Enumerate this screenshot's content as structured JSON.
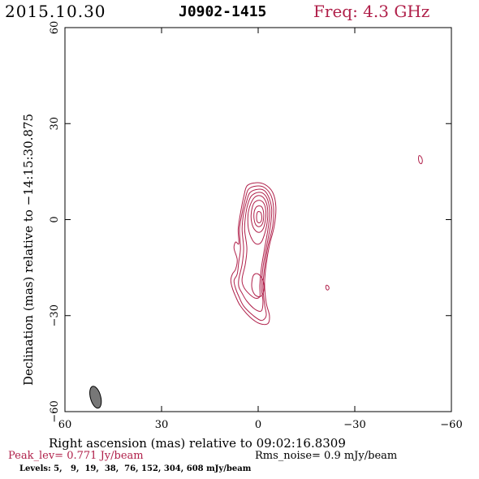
{
  "header": {
    "date": "2015.10.30",
    "source": "J0902-1415",
    "freq": "Freq: 4.3 GHz"
  },
  "footer": {
    "peak_label": "Peak_lev=",
    "peak_value": "0.771 Jy/beam",
    "rms_label": "Rms_noise=",
    "rms_value": "0.9 mJy/beam",
    "levels_label": "Levels:",
    "levels_values": "5,   9,  19,  38,  76, 152, 304, 608 mJy/beam"
  },
  "colors": {
    "contour": "#b0204a",
    "freq": "#b0204a",
    "peak": "#b0204a",
    "beam_fill": "#777777",
    "axis": "#000000"
  },
  "chart_data": {
    "type": "contour",
    "xlabel": "Right ascension (mas) relative to 09:02:16.8309",
    "ylabel": "Declination (mas) relative to −14:15:30.875",
    "xlim": [
      60,
      -60
    ],
    "ylim": [
      -60,
      60
    ],
    "x_ticks": [
      60,
      30,
      0,
      -30,
      -60
    ],
    "y_ticks": [
      -60,
      -30,
      0,
      30,
      60
    ],
    "x_tick_labels": [
      "60",
      "30",
      "0",
      "−30",
      "−60"
    ],
    "y_tick_labels": [
      "−60",
      "−30",
      "0",
      "30",
      "60"
    ],
    "levels_mJy": [
      5,
      9,
      19,
      38,
      76,
      152,
      304,
      608
    ],
    "core": {
      "ra": -0.5,
      "dec": 0.5
    },
    "beam": {
      "ra": 50.5,
      "dec": -55.5,
      "major_mas": 7.0,
      "minor_mas": 3.2,
      "pa_deg": -15
    },
    "contours": [
      {
        "name": "core-contour-5",
        "points": [
          [
            3.5,
            10.5
          ],
          [
            1.0,
            11.5
          ],
          [
            -2.0,
            11.0
          ],
          [
            -4.5,
            8.5
          ],
          [
            -5.5,
            4.0
          ],
          [
            -5.0,
            -2.0
          ],
          [
            -3.5,
            -8.0
          ],
          [
            -2.5,
            -14.0
          ],
          [
            -2.0,
            -20.0
          ],
          [
            -2.5,
            -26.0
          ],
          [
            -3.5,
            -30.0
          ],
          [
            -3.0,
            -32.5
          ],
          [
            -0.5,
            -32.5
          ],
          [
            2.5,
            -30.5
          ],
          [
            5.5,
            -27.0
          ],
          [
            7.0,
            -24.0
          ],
          [
            8.0,
            -21.5
          ],
          [
            8.5,
            -19.0
          ],
          [
            8.0,
            -17.0
          ],
          [
            7.0,
            -15.5
          ],
          [
            6.5,
            -12.5
          ],
          [
            7.5,
            -9.0
          ],
          [
            7.0,
            -7.0
          ],
          [
            6.0,
            -7.5
          ],
          [
            6.2,
            -3.0
          ],
          [
            5.5,
            2.0
          ],
          [
            4.5,
            7.0
          ],
          [
            3.5,
            10.5
          ]
        ]
      },
      {
        "name": "core-contour-9",
        "points": [
          [
            3.0,
            9.5
          ],
          [
            0.5,
            10.5
          ],
          [
            -2.0,
            10.0
          ],
          [
            -4.0,
            7.5
          ],
          [
            -4.8,
            3.5
          ],
          [
            -4.5,
            -2.0
          ],
          [
            -3.0,
            -8.5
          ],
          [
            -2.0,
            -15.0
          ],
          [
            -1.5,
            -21.0
          ],
          [
            -2.0,
            -26.5
          ],
          [
            -2.5,
            -30.0
          ],
          [
            -1.0,
            -31.5
          ],
          [
            1.5,
            -30.0
          ],
          [
            4.5,
            -27.0
          ],
          [
            6.0,
            -24.0
          ],
          [
            7.0,
            -21.5
          ],
          [
            7.5,
            -19.0
          ],
          [
            6.5,
            -17.0
          ],
          [
            6.0,
            -13.0
          ],
          [
            5.5,
            -9.0
          ],
          [
            5.8,
            -3.0
          ],
          [
            5.0,
            2.0
          ],
          [
            4.0,
            6.5
          ],
          [
            3.0,
            9.5
          ]
        ]
      },
      {
        "name": "core-contour-19",
        "points": [
          [
            2.5,
            8.5
          ],
          [
            0.0,
            9.5
          ],
          [
            -2.0,
            9.0
          ],
          [
            -3.5,
            6.5
          ],
          [
            -4.2,
            3.0
          ],
          [
            -3.8,
            -2.0
          ],
          [
            -2.5,
            -9.0
          ],
          [
            -1.5,
            -15.0
          ],
          [
            -1.0,
            -21.0
          ],
          [
            -1.5,
            -25.5
          ],
          [
            -1.0,
            -28.5
          ],
          [
            1.0,
            -28.0
          ],
          [
            3.5,
            -25.5
          ],
          [
            5.0,
            -23.0
          ],
          [
            6.0,
            -21.0
          ],
          [
            6.0,
            -18.5
          ],
          [
            5.0,
            -14.0
          ],
          [
            4.5,
            -9.0
          ],
          [
            5.0,
            -3.0
          ],
          [
            4.5,
            2.0
          ],
          [
            3.5,
            6.0
          ],
          [
            2.5,
            8.5
          ]
        ]
      },
      {
        "name": "core-contour-38",
        "points": [
          [
            2.0,
            7.5
          ],
          [
            0.0,
            8.5
          ],
          [
            -1.8,
            8.0
          ],
          [
            -3.0,
            6.0
          ],
          [
            -3.6,
            2.5
          ],
          [
            -3.2,
            -2.0
          ],
          [
            -2.0,
            -9.0
          ],
          [
            -1.0,
            -15.0
          ],
          [
            -0.5,
            -20.5
          ],
          [
            -0.5,
            -24.0
          ],
          [
            1.0,
            -24.5
          ],
          [
            3.0,
            -23.0
          ],
          [
            4.5,
            -21.0
          ],
          [
            5.0,
            -18.5
          ],
          [
            4.0,
            -14.0
          ],
          [
            3.5,
            -9.0
          ],
          [
            4.2,
            -3.0
          ],
          [
            3.8,
            2.0
          ],
          [
            3.0,
            5.5
          ],
          [
            2.0,
            7.5
          ]
        ]
      },
      {
        "name": "core-contour-76",
        "points": [
          [
            1.5,
            6.5
          ],
          [
            0.0,
            7.5
          ],
          [
            -1.5,
            7.0
          ],
          [
            -2.6,
            5.0
          ],
          [
            -3.0,
            2.0
          ],
          [
            -2.6,
            -2.0
          ],
          [
            -1.5,
            -6.0
          ],
          [
            -0.5,
            -7.5
          ],
          [
            0.8,
            -7.5
          ],
          [
            2.0,
            -6.0
          ],
          [
            3.0,
            -3.0
          ],
          [
            3.2,
            0.5
          ],
          [
            2.8,
            3.5
          ],
          [
            1.5,
            6.5
          ]
        ]
      },
      {
        "name": "core-contour-152",
        "points": [
          [
            1.0,
            5.5
          ],
          [
            -0.5,
            6.0
          ],
          [
            -1.8,
            5.0
          ],
          [
            -2.4,
            2.5
          ],
          [
            -2.2,
            -0.5
          ],
          [
            -1.5,
            -3.0
          ],
          [
            -0.2,
            -4.0
          ],
          [
            1.2,
            -3.0
          ],
          [
            2.0,
            -1.0
          ],
          [
            2.2,
            1.5
          ],
          [
            1.8,
            4.0
          ],
          [
            1.0,
            5.5
          ]
        ]
      },
      {
        "name": "core-contour-304",
        "points": [
          [
            0.5,
            4.0
          ],
          [
            -0.8,
            4.2
          ],
          [
            -1.6,
            2.8
          ],
          [
            -1.7,
            0.5
          ],
          [
            -1.2,
            -1.5
          ],
          [
            -0.2,
            -2.2
          ],
          [
            0.8,
            -1.5
          ],
          [
            1.3,
            0.5
          ],
          [
            1.2,
            2.6
          ],
          [
            0.5,
            4.0
          ]
        ]
      },
      {
        "name": "core-contour-608",
        "points": [
          [
            0.0,
            2.5
          ],
          [
            -0.8,
            2.2
          ],
          [
            -1.1,
            1.0
          ],
          [
            -1.0,
            -0.3
          ],
          [
            -0.4,
            -1.0
          ],
          [
            0.3,
            -0.6
          ],
          [
            0.5,
            0.6
          ],
          [
            0.4,
            1.8
          ],
          [
            0.0,
            2.5
          ]
        ]
      },
      {
        "name": "jet-contour-inner",
        "points": [
          [
            1.5,
            -17.5
          ],
          [
            0.0,
            -17.0
          ],
          [
            -1.5,
            -19.0
          ],
          [
            -1.8,
            -22.0
          ],
          [
            -0.8,
            -24.0
          ],
          [
            1.0,
            -23.5
          ],
          [
            2.0,
            -21.0
          ],
          [
            1.5,
            -17.5
          ]
        ]
      },
      {
        "name": "isolated-contour-ne",
        "points": [
          [
            -50.0,
            20.0
          ],
          [
            -50.6,
            19.6
          ],
          [
            -51.0,
            18.5
          ],
          [
            -50.7,
            17.5
          ],
          [
            -50.1,
            17.8
          ],
          [
            -49.8,
            19.0
          ],
          [
            -50.0,
            20.0
          ]
        ]
      },
      {
        "name": "isolated-contour-sw",
        "points": [
          [
            -21.2,
            -20.5
          ],
          [
            -21.8,
            -20.8
          ],
          [
            -22.0,
            -21.5
          ],
          [
            -21.6,
            -22.0
          ],
          [
            -21.1,
            -21.6
          ],
          [
            -21.0,
            -21.0
          ],
          [
            -21.2,
            -20.5
          ]
        ]
      }
    ]
  }
}
